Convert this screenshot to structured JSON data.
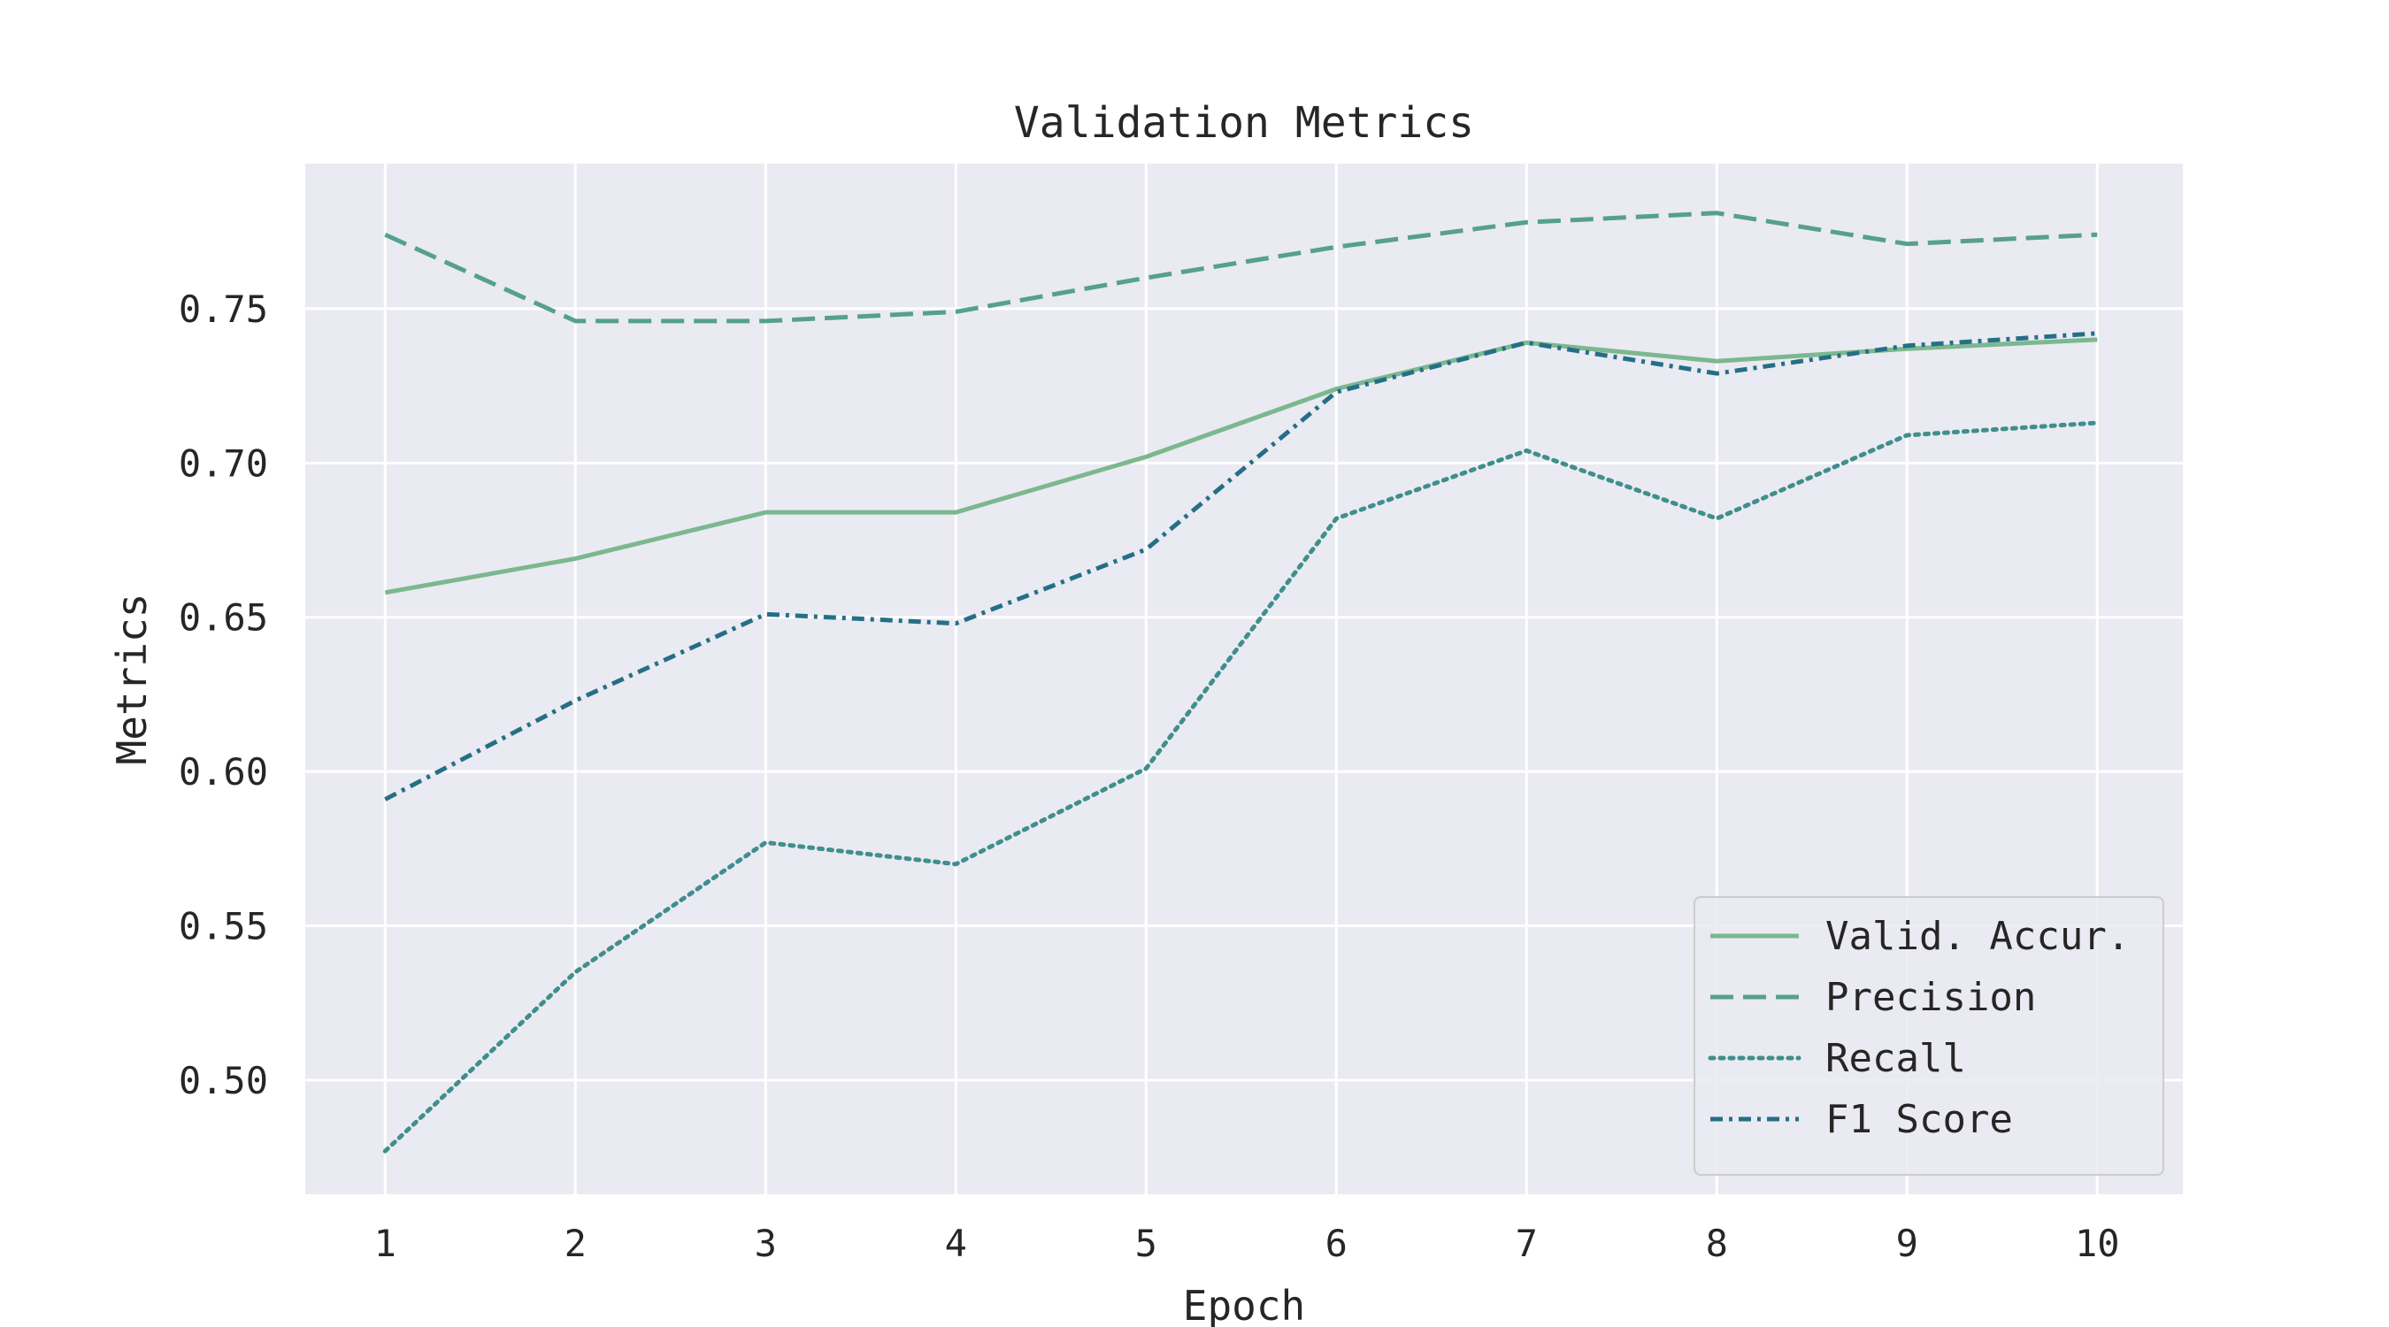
{
  "chart_data": {
    "type": "line",
    "title": "Validation Metrics",
    "xlabel": "Epoch",
    "ylabel": "Metrics",
    "x": [
      1,
      2,
      3,
      4,
      5,
      6,
      7,
      8,
      9,
      10
    ],
    "xlim": [
      0.58,
      10.45
    ],
    "ylim": [
      0.463,
      0.797
    ],
    "yticks": [
      0.5,
      0.55,
      0.6,
      0.65,
      0.7,
      0.75
    ],
    "ytick_labels": [
      "0.50",
      "0.55",
      "0.60",
      "0.65",
      "0.70",
      "0.75"
    ],
    "grid": true,
    "legend_location": "lower right",
    "series": [
      {
        "name": "Valid. Accur.",
        "style": "solid",
        "color": "#7bb88e",
        "values": [
          0.658,
          0.669,
          0.684,
          0.684,
          0.702,
          0.724,
          0.739,
          0.733,
          0.737,
          0.74
        ]
      },
      {
        "name": "Precision",
        "style": "dashed",
        "color": "#55a08e",
        "values": [
          0.774,
          0.746,
          0.746,
          0.749,
          0.76,
          0.77,
          0.778,
          0.781,
          0.771,
          0.774
        ]
      },
      {
        "name": "Recall",
        "style": "dotted",
        "color": "#3f8f8c",
        "values": [
          0.477,
          0.535,
          0.577,
          0.57,
          0.601,
          0.682,
          0.704,
          0.682,
          0.709,
          0.713
        ]
      },
      {
        "name": "F1 Score",
        "style": "dashdot",
        "color": "#256f86",
        "values": [
          0.591,
          0.623,
          0.651,
          0.648,
          0.672,
          0.723,
          0.739,
          0.729,
          0.738,
          0.742
        ]
      }
    ]
  }
}
